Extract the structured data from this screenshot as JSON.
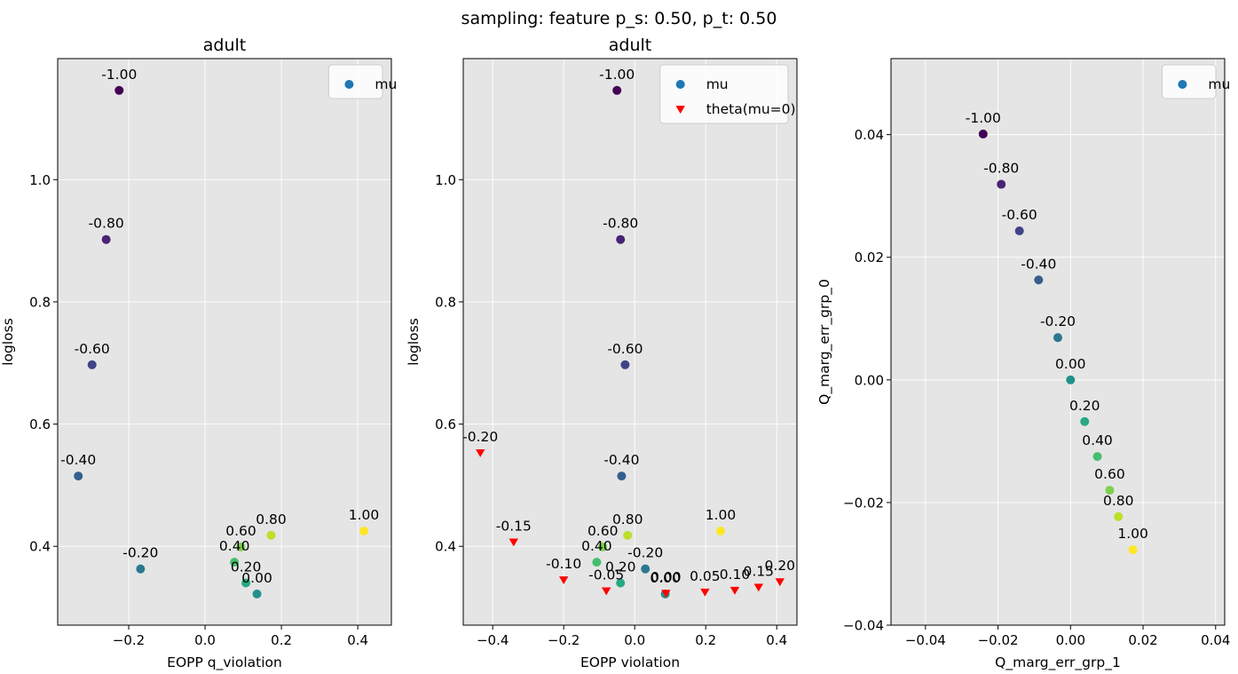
{
  "figure": {
    "suptitle": "sampling: feature p_s: 0.50, p_t: 0.50"
  },
  "colors": {
    "background": "#e5e5e5",
    "grid": "#ffffff",
    "mu_legend": "#1f77b4",
    "theta": "#ff0000"
  },
  "chart_data": [
    {
      "type": "scatter",
      "title": "adult",
      "xlabel": "EOPP q_violation",
      "ylabel": "logloss",
      "xlim": [
        -0.386,
        0.488
      ],
      "ylim": [
        0.271,
        1.198
      ],
      "xticks": [
        -0.2,
        0.0,
        0.2,
        0.4
      ],
      "xtick_labels": [
        "−0.2",
        "0.0",
        "0.2",
        "0.4"
      ],
      "yticks": [
        0.4,
        0.6,
        0.8,
        1.0
      ],
      "ytick_labels": [
        "0.4",
        "0.6",
        "0.8",
        "1.0"
      ],
      "grid": true,
      "legend": {
        "position": "top-right",
        "entries": [
          {
            "label": "mu",
            "marker": "circle"
          }
        ]
      },
      "series": [
        {
          "name": "mu",
          "marker": "circle",
          "colormap": "viridis",
          "points": [
            {
              "x": -0.225,
              "y": 1.146,
              "label": "-1.00",
              "c": -1.0
            },
            {
              "x": -0.259,
              "y": 0.902,
              "label": "-0.80",
              "c": -0.8
            },
            {
              "x": -0.296,
              "y": 0.697,
              "label": "-0.60",
              "c": -0.6
            },
            {
              "x": -0.332,
              "y": 0.515,
              "label": "-0.40",
              "c": -0.4
            },
            {
              "x": -0.169,
              "y": 0.363,
              "label": "-0.20",
              "c": -0.2
            },
            {
              "x": 0.136,
              "y": 0.322,
              "label": "0.00",
              "c": 0.0
            },
            {
              "x": 0.107,
              "y": 0.34,
              "label": "0.20",
              "c": 0.2
            },
            {
              "x": 0.077,
              "y": 0.374,
              "label": "0.40",
              "c": 0.4
            },
            {
              "x": 0.094,
              "y": 0.399,
              "label": "0.60",
              "c": 0.6
            },
            {
              "x": 0.173,
              "y": 0.418,
              "label": "0.80",
              "c": 0.8
            },
            {
              "x": 0.416,
              "y": 0.425,
              "label": "1.00",
              "c": 1.0
            }
          ]
        }
      ]
    },
    {
      "type": "scatter",
      "title": "adult",
      "xlabel": "EOPP violation",
      "ylabel": "logloss",
      "xlim": [
        -0.483,
        0.457
      ],
      "ylim": [
        0.271,
        1.198
      ],
      "xticks": [
        -0.4,
        -0.2,
        0.0,
        0.2,
        0.4
      ],
      "xtick_labels": [
        "−0.4",
        "−0.2",
        "0.0",
        "0.2",
        "0.4"
      ],
      "yticks": [
        0.4,
        0.6,
        0.8,
        1.0
      ],
      "ytick_labels": [
        "0.4",
        "0.6",
        "0.8",
        "1.0"
      ],
      "grid": true,
      "legend": {
        "position": "top-right",
        "entries": [
          {
            "label": "mu",
            "marker": "circle"
          },
          {
            "label": "theta(mu=0)",
            "marker": "triangle-down"
          }
        ]
      },
      "series": [
        {
          "name": "mu",
          "marker": "circle",
          "colormap": "viridis",
          "points": [
            {
              "x": -0.05,
              "y": 1.146,
              "label": "-1.00",
              "c": -1.0
            },
            {
              "x": -0.04,
              "y": 0.902,
              "label": "-0.80",
              "c": -0.8
            },
            {
              "x": -0.027,
              "y": 0.697,
              "label": "-0.60",
              "c": -0.6
            },
            {
              "x": -0.037,
              "y": 0.515,
              "label": "-0.40",
              "c": -0.4
            },
            {
              "x": 0.03,
              "y": 0.363,
              "label": "-0.20",
              "c": -0.2
            },
            {
              "x": 0.086,
              "y": 0.322,
              "label": "0.00",
              "c": 0.0
            },
            {
              "x": -0.04,
              "y": 0.34,
              "label": "0.20",
              "c": 0.2
            },
            {
              "x": -0.107,
              "y": 0.374,
              "label": "0.40",
              "c": 0.4
            },
            {
              "x": -0.09,
              "y": 0.399,
              "label": "0.60",
              "c": 0.6
            },
            {
              "x": -0.02,
              "y": 0.418,
              "label": "0.80",
              "c": 0.8
            },
            {
              "x": 0.242,
              "y": 0.425,
              "label": "1.00",
              "c": 1.0
            }
          ]
        },
        {
          "name": "theta(mu=0)",
          "marker": "triangle-down",
          "color": "#ff0000",
          "points": [
            {
              "x": -0.435,
              "y": 0.553,
              "label": "-0.20"
            },
            {
              "x": -0.341,
              "y": 0.407,
              "label": "-0.15"
            },
            {
              "x": -0.2,
              "y": 0.345,
              "label": "-0.10"
            },
            {
              "x": -0.08,
              "y": 0.327,
              "label": "-0.05"
            },
            {
              "x": 0.088,
              "y": 0.323,
              "label": "0.00"
            },
            {
              "x": 0.198,
              "y": 0.325,
              "label": "0.05"
            },
            {
              "x": 0.282,
              "y": 0.328,
              "label": "0.10"
            },
            {
              "x": 0.349,
              "y": 0.333,
              "label": "0.15"
            },
            {
              "x": 0.409,
              "y": 0.342,
              "label": "0.20"
            }
          ]
        }
      ]
    },
    {
      "type": "scatter",
      "title": "",
      "xlabel": "Q_marg_err_grp_1",
      "ylabel": "Q_marg_err_grp_0",
      "xlim": [
        -0.0495,
        0.0425
      ],
      "ylim": [
        -0.04,
        0.0524
      ],
      "xticks": [
        -0.04,
        -0.02,
        0.0,
        0.02,
        0.04
      ],
      "xtick_labels": [
        "−0.04",
        "−0.02",
        "0.00",
        "0.02",
        "0.04"
      ],
      "yticks": [
        -0.04,
        -0.02,
        0.0,
        0.02,
        0.04
      ],
      "ytick_labels": [
        "−0.04",
        "−0.02",
        "0.00",
        "0.02",
        "0.04"
      ],
      "grid": true,
      "legend": {
        "position": "top-right",
        "entries": [
          {
            "label": "mu",
            "marker": "circle"
          }
        ]
      },
      "series": [
        {
          "name": "mu",
          "marker": "circle",
          "colormap": "viridis",
          "points": [
            {
              "x": -0.0241,
              "y": 0.0401,
              "label": "-1.00",
              "c": -1.0
            },
            {
              "x": -0.0191,
              "y": 0.0319,
              "label": "-0.80",
              "c": -0.8
            },
            {
              "x": -0.0141,
              "y": 0.0243,
              "label": "-0.60",
              "c": -0.6
            },
            {
              "x": -0.0088,
              "y": 0.0163,
              "label": "-0.40",
              "c": -0.4
            },
            {
              "x": -0.0035,
              "y": 0.0069,
              "label": "-0.20",
              "c": -0.2
            },
            {
              "x": 0.0,
              "y": 0.0,
              "label": "0.00",
              "c": 0.0
            },
            {
              "x": 0.0039,
              "y": -0.0068,
              "label": "0.20",
              "c": 0.2
            },
            {
              "x": 0.0074,
              "y": -0.0125,
              "label": "0.40",
              "c": 0.4
            },
            {
              "x": 0.0108,
              "y": -0.018,
              "label": "0.60",
              "c": 0.6
            },
            {
              "x": 0.0132,
              "y": -0.0223,
              "label": "0.80",
              "c": 0.8
            },
            {
              "x": 0.0172,
              "y": -0.0277,
              "label": "1.00",
              "c": 1.0
            }
          ]
        }
      ]
    }
  ]
}
